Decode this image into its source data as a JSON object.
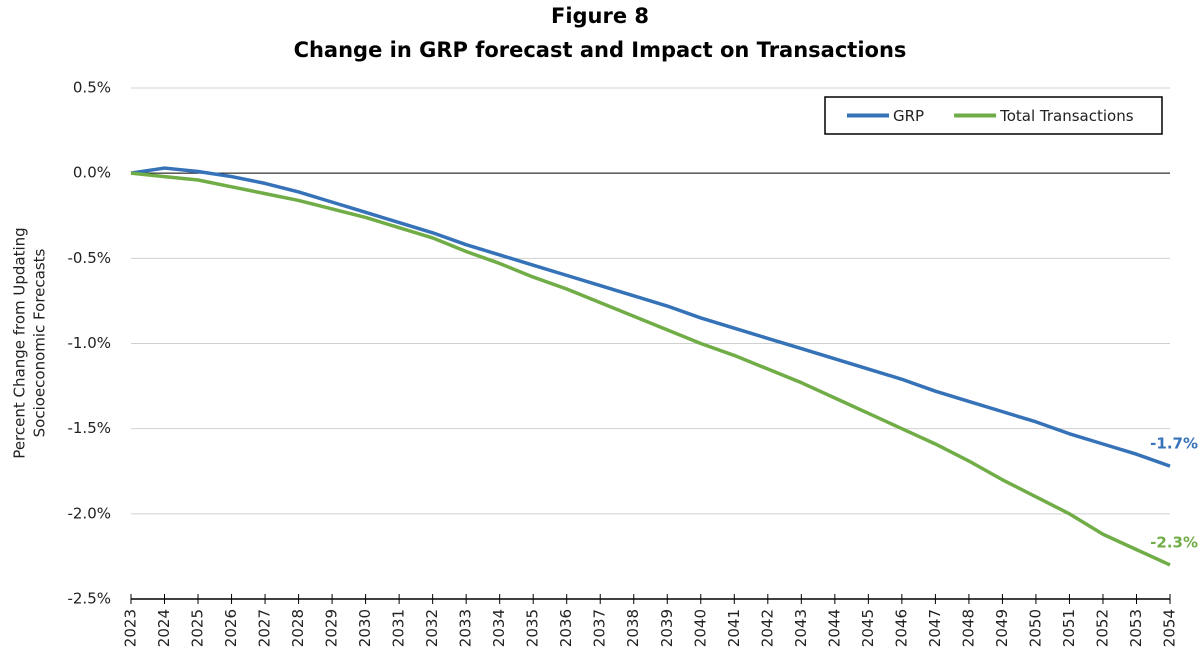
{
  "chart_data": {
    "type": "line",
    "title": "Figure 8",
    "subtitle": "Change in GRP forecast and Impact on Transactions",
    "ylabel": [
      "Percent Change from Updating",
      "Socioeconomic Forecasts"
    ],
    "x": [
      2023,
      2024,
      2025,
      2026,
      2027,
      2028,
      2029,
      2030,
      2031,
      2032,
      2033,
      2034,
      2035,
      2036,
      2037,
      2038,
      2039,
      2040,
      2041,
      2042,
      2043,
      2044,
      2045,
      2046,
      2047,
      2048,
      2049,
      2050,
      2051,
      2052,
      2053,
      2054
    ],
    "xlim": [
      2023,
      2054
    ],
    "ylim": [
      -2.5,
      0.5
    ],
    "yticks": [
      {
        "value": 0.5,
        "label": "0.5%"
      },
      {
        "value": 0,
        "label": "0.0%"
      },
      {
        "value": -0.5,
        "label": "-0.5%"
      },
      {
        "value": -1,
        "label": "-1.0%"
      },
      {
        "value": -1.5,
        "label": "-1.5%"
      },
      {
        "value": -2,
        "label": "-2.0%"
      },
      {
        "value": -2.5,
        "label": "-2.5%"
      }
    ],
    "grid": true,
    "legend": "top-right",
    "series": [
      {
        "name": "GRP",
        "color": "#3572b8",
        "values": [
          0,
          0.03,
          0.01,
          -0.02,
          -0.06,
          -0.11,
          -0.17,
          -0.23,
          -0.29,
          -0.35,
          -0.42,
          -0.48,
          -0.54,
          -0.6,
          -0.66,
          -0.72,
          -0.78,
          -0.85,
          -0.91,
          -0.97,
          -1.03,
          -1.09,
          -1.15,
          -1.21,
          -1.28,
          -1.34,
          -1.4,
          -1.46,
          -1.53,
          -1.59,
          -1.65,
          -1.72
        ],
        "value_labels": [
          null,
          null,
          null,
          null,
          null,
          null,
          null,
          null,
          null,
          null,
          null,
          null,
          null,
          null,
          null,
          null,
          null,
          null,
          null,
          null,
          null,
          null,
          null,
          null,
          null,
          null,
          null,
          null,
          null,
          null,
          null,
          "-1.7%"
        ]
      },
      {
        "name": "Total Transactions",
        "color": "#70ad47",
        "values": [
          0,
          -0.02,
          -0.04,
          -0.08,
          -0.12,
          -0.16,
          -0.21,
          -0.26,
          -0.32,
          -0.38,
          -0.46,
          -0.53,
          -0.61,
          -0.68,
          -0.76,
          -0.84,
          -0.92,
          -1.0,
          -1.07,
          -1.15,
          -1.23,
          -1.32,
          -1.41,
          -1.5,
          -1.59,
          -1.69,
          -1.8,
          -1.9,
          -2.0,
          -2.12,
          -2.21,
          -2.3
        ],
        "value_labels": [
          null,
          null,
          null,
          null,
          null,
          null,
          null,
          null,
          null,
          null,
          null,
          null,
          null,
          null,
          null,
          null,
          null,
          null,
          null,
          null,
          null,
          null,
          null,
          null,
          null,
          null,
          null,
          null,
          null,
          null,
          null,
          "-2.3%"
        ]
      }
    ]
  }
}
